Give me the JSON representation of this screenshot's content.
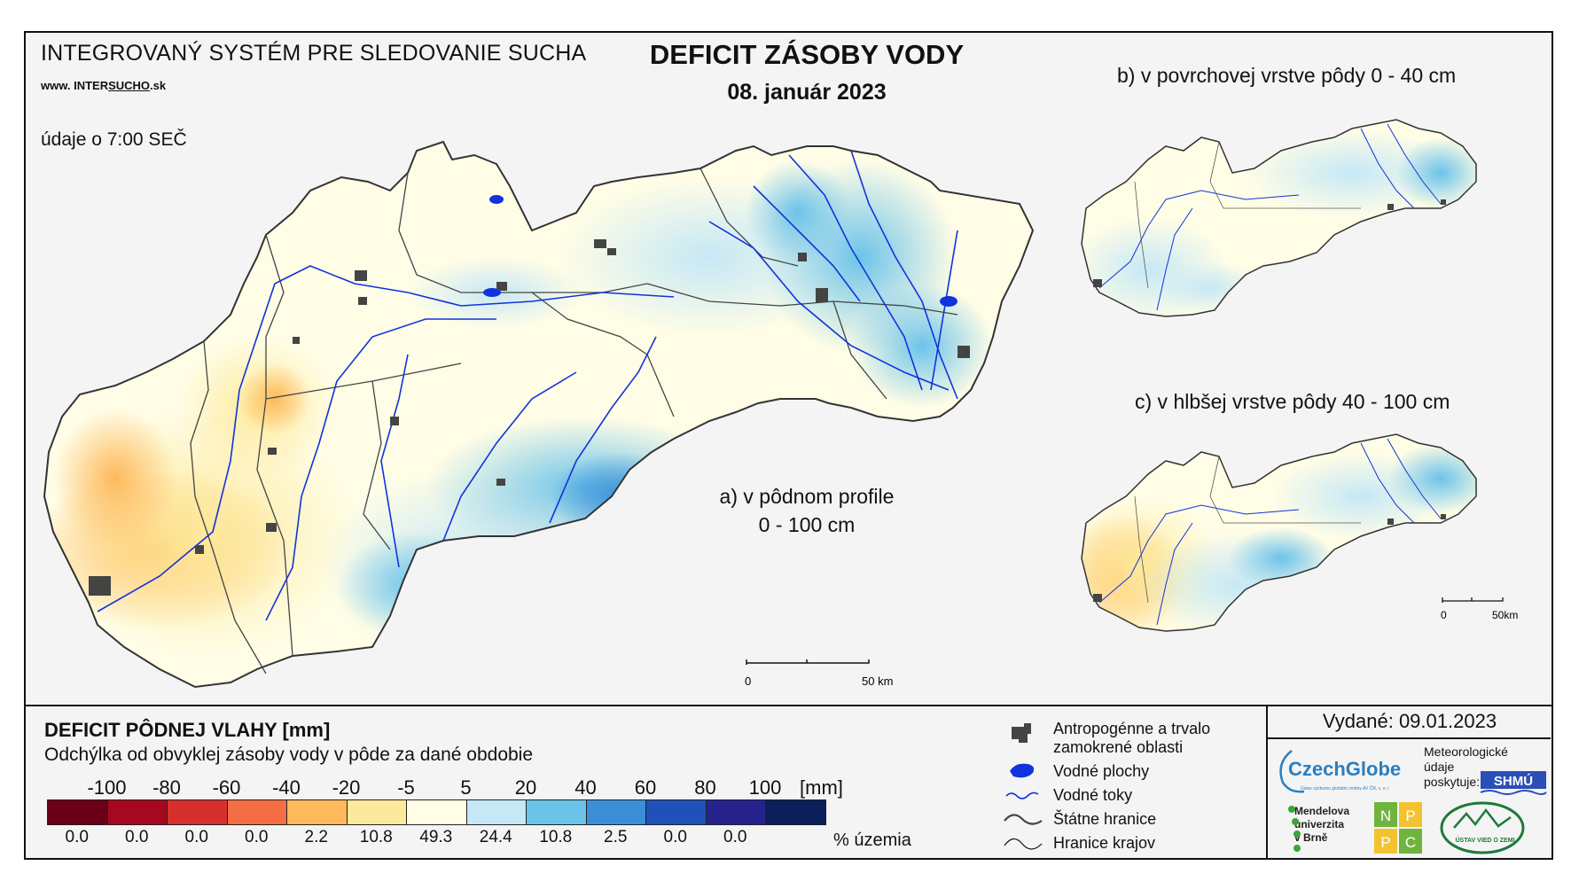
{
  "header": {
    "org_title": "INTEGROVANÝ SYSTÉM PRE SLEDOVANIE SUCHA",
    "website_prefix": "www.",
    "website_name_a": "INTER",
    "website_name_b": "SUCHO",
    "website_suffix": ".sk",
    "data_time": "údaje o 7:00 SEČ",
    "title": "DEFICIT ZÁSOBY VODY",
    "date": "08. január 2023"
  },
  "maps": {
    "a_line1": "a) v pôdnom profile",
    "a_line2": "0 - 100 cm",
    "b_label": "b) v povrchovej vrstve pôdy 0 - 40 cm",
    "c_label": "c) v hlbšej vrstve pôdy 40 - 100 cm",
    "scale_zero": "0",
    "scale_end": "50 km",
    "scale_end_small": "50km"
  },
  "legend": {
    "title": "DEFICIT PÔDNEJ VLAHY [mm]",
    "subtitle": "Odchýlka od obvyklej zásoby vody v pôde za dané obdobie",
    "unit": "[mm]",
    "percent_unit": "% územia",
    "ticks": [
      "-100",
      "-80",
      "-60",
      "-40",
      "-20",
      "-5",
      "5",
      "20",
      "40",
      "60",
      "80",
      "100"
    ],
    "classes": [
      {
        "color": "#6b0016",
        "percent": "0.0"
      },
      {
        "color": "#a8081f",
        "percent": "0.0"
      },
      {
        "color": "#d7302c",
        "percent": "0.0"
      },
      {
        "color": "#f46d43",
        "percent": "0.0"
      },
      {
        "color": "#fdba5c",
        "percent": "2.2"
      },
      {
        "color": "#fde99b",
        "percent": "10.8"
      },
      {
        "color": "#fffde6",
        "percent": "49.3"
      },
      {
        "color": "#c6e8f6",
        "percent": "24.4"
      },
      {
        "color": "#6cc3ea",
        "percent": "10.8"
      },
      {
        "color": "#3b8fd8",
        "percent": "2.5"
      },
      {
        "color": "#1f51b8",
        "percent": "0.0"
      },
      {
        "color": "#26238f",
        "percent": "0.0"
      },
      {
        "color": "#0b1f5a",
        "percent": ""
      }
    ]
  },
  "map_key": {
    "urban_line1": "Antropogénne a trvalo",
    "urban_line2": "zamokrené oblasti",
    "water_bodies": "Vodné plochy",
    "rivers": "Vodné toky",
    "state_border": "Štátne hranice",
    "region_border": "Hranice krajov"
  },
  "footer": {
    "issued": "Vydané: 09.01.2023",
    "czechglobe": "CzechGlobe",
    "czechglobe_sub": "Ústav výzkumu globální změny AV ČR, v. v. i.",
    "meteo_line1": "Meteorologické",
    "meteo_line2": "údaje",
    "meteo_line3": "poskytuje:",
    "shmu": "SHMÚ",
    "mendel_line1": "Mendelova",
    "mendel_line2": "univerzita",
    "mendel_line3": "v Brně",
    "nppc": [
      "N",
      "P",
      "P",
      "C"
    ],
    "uvz": "ÚSTAV VIED O ZEMI"
  },
  "colors": {
    "frame_bg": "#f4f4f4",
    "river": "#1133dd",
    "urban": "#444444",
    "border": "#333333"
  }
}
